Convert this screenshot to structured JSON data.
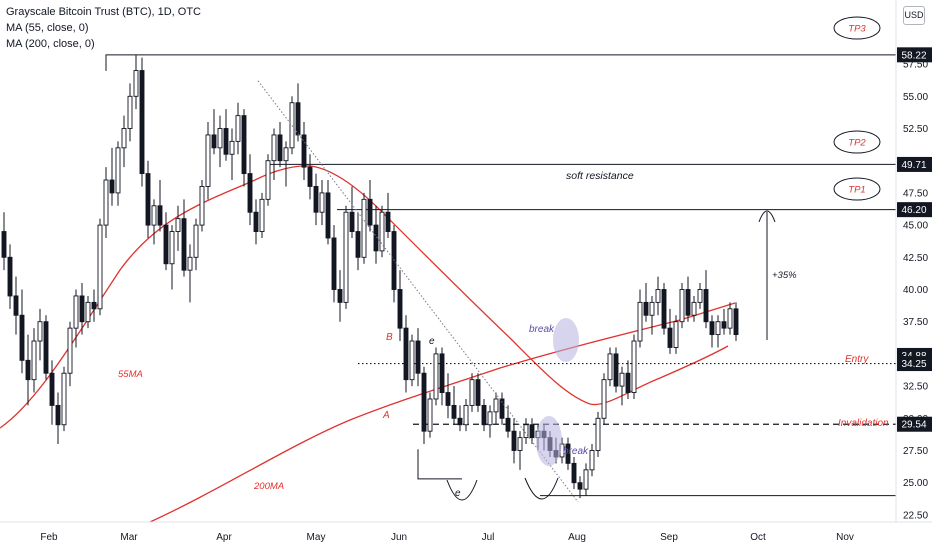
{
  "header": {
    "title": "Grayscale Bitcoin Trust (BTC), 1D, OTC",
    "ma1": "MA (55, close, 0)",
    "ma2": "MA (200, close, 0)"
  },
  "currency_button": "USD",
  "colors": {
    "bull": "#131722",
    "bear": "#131722",
    "ma": "#e0332e",
    "annotation_red": "#e0332e",
    "annotation_blue": "#5b4ea8",
    "highlight": "#b7b0e0",
    "axis_text": "#131722"
  },
  "chart_data": {
    "type": "candlestick",
    "title": "Grayscale Bitcoin Trust (BTC), 1D, OTC",
    "y_ticks": [
      "22.50",
      "25.00",
      "27.50",
      "30.00",
      "32.50",
      "35.00",
      "37.50",
      "40.00",
      "42.50",
      "45.00",
      "47.50",
      "50.00",
      "52.50",
      "55.00",
      "57.50"
    ],
    "ylim": [
      21.5,
      59.5
    ],
    "x_ticks": [
      "Feb",
      "Mar",
      "Apr",
      "May",
      "Jun",
      "Jul",
      "Aug",
      "Sep",
      "Oct",
      "Nov"
    ],
    "price_levels": [
      {
        "name": "TP3",
        "value": 58.22,
        "label": "58.22",
        "style": "solid"
      },
      {
        "name": "TP2",
        "value": 49.71,
        "label": "49.71",
        "style": "solid"
      },
      {
        "name": "TP1",
        "value": 46.2,
        "label": "46.20",
        "style": "solid"
      },
      {
        "name": "Entry",
        "value": 34.25,
        "label": "34.25",
        "style": "dotted"
      },
      {
        "name": "last",
        "value": 34.88,
        "label": "34.88",
        "style": "none"
      },
      {
        "name": "Invalidation",
        "value": 29.54,
        "label": "29.54",
        "style": "dashed"
      }
    ],
    "annotations": [
      "TP3",
      "TP2",
      "TP1",
      "soft resistance",
      "+35%",
      "Entry",
      "Invalidation",
      "break",
      "break",
      "55MA",
      "200MA",
      "A",
      "B",
      "e",
      "e"
    ],
    "series": [
      {
        "name": "MA (55, close, 0)"
      },
      {
        "name": "MA (200, close, 0)"
      }
    ],
    "ohlc": [
      [
        44.5,
        46.0,
        41.5,
        42.5
      ],
      [
        42.5,
        43.5,
        38.5,
        39.5
      ],
      [
        39.5,
        41.0,
        36.5,
        38.0
      ],
      [
        38.0,
        40.0,
        33.5,
        34.5
      ],
      [
        34.5,
        36.5,
        31.0,
        33.0
      ],
      [
        33.0,
        37.0,
        32.0,
        36.0
      ],
      [
        36.0,
        38.5,
        34.5,
        37.5
      ],
      [
        37.5,
        38.0,
        33.0,
        33.5
      ],
      [
        33.5,
        34.5,
        29.5,
        31.0
      ],
      [
        31.0,
        32.0,
        28.0,
        29.5
      ],
      [
        29.5,
        34.0,
        29.0,
        33.5
      ],
      [
        33.5,
        37.5,
        32.5,
        37.0
      ],
      [
        37.0,
        40.0,
        35.5,
        39.5
      ],
      [
        39.5,
        40.5,
        36.5,
        37.5
      ],
      [
        37.5,
        39.5,
        37.0,
        39.0
      ],
      [
        39.0,
        40.0,
        37.5,
        38.5
      ],
      [
        38.5,
        45.5,
        38.0,
        45.0
      ],
      [
        45.0,
        49.5,
        44.0,
        48.5
      ],
      [
        48.5,
        51.0,
        46.5,
        47.5
      ],
      [
        47.5,
        51.5,
        46.5,
        51.0
      ],
      [
        51.0,
        53.5,
        49.5,
        52.5
      ],
      [
        52.5,
        56.0,
        51.5,
        55.0
      ],
      [
        55.0,
        58.2,
        54.0,
        57.0
      ],
      [
        57.0,
        58.0,
        48.0,
        49.0
      ],
      [
        49.0,
        50.0,
        44.0,
        45.0
      ],
      [
        45.0,
        47.0,
        43.5,
        46.5
      ],
      [
        46.5,
        48.5,
        44.5,
        45.0
      ],
      [
        45.0,
        46.0,
        41.5,
        42.0
      ],
      [
        42.0,
        45.0,
        40.0,
        44.5
      ],
      [
        44.5,
        46.5,
        43.0,
        45.5
      ],
      [
        45.5,
        47.0,
        41.0,
        41.5
      ],
      [
        41.5,
        43.5,
        39.0,
        42.5
      ],
      [
        42.5,
        45.5,
        41.5,
        45.0
      ],
      [
        45.0,
        48.5,
        44.5,
        48.0
      ],
      [
        48.0,
        53.0,
        47.0,
        52.0
      ],
      [
        52.0,
        54.0,
        50.5,
        51.0
      ],
      [
        51.0,
        53.5,
        49.5,
        52.5
      ],
      [
        52.5,
        54.0,
        50.0,
        50.5
      ],
      [
        50.5,
        52.5,
        48.5,
        51.5
      ],
      [
        51.5,
        54.5,
        50.5,
        53.5
      ],
      [
        53.5,
        54.0,
        48.0,
        49.0
      ],
      [
        49.0,
        50.5,
        45.0,
        46.0
      ],
      [
        46.0,
        47.0,
        43.5,
        44.5
      ],
      [
        44.5,
        47.5,
        44.0,
        47.0
      ],
      [
        47.0,
        50.5,
        46.5,
        50.0
      ],
      [
        50.0,
        52.5,
        48.5,
        52.0
      ],
      [
        52.0,
        53.0,
        49.5,
        50.0
      ],
      [
        50.0,
        51.5,
        48.0,
        51.0
      ],
      [
        51.0,
        55.0,
        50.5,
        54.5
      ],
      [
        54.5,
        56.0,
        51.5,
        52.0
      ],
      [
        52.0,
        53.0,
        48.5,
        49.5
      ],
      [
        49.5,
        50.5,
        47.0,
        48.0
      ],
      [
        48.0,
        49.0,
        45.0,
        46.0
      ],
      [
        46.0,
        48.5,
        45.0,
        47.5
      ],
      [
        47.5,
        48.5,
        43.5,
        44.0
      ],
      [
        44.0,
        45.0,
        39.0,
        40.0
      ],
      [
        40.0,
        41.5,
        37.5,
        39.0
      ],
      [
        39.0,
        46.5,
        38.5,
        46.0
      ],
      [
        46.0,
        48.0,
        44.0,
        44.5
      ],
      [
        44.5,
        46.0,
        41.5,
        42.5
      ],
      [
        42.5,
        47.5,
        42.0,
        47.0
      ],
      [
        47.0,
        48.5,
        44.5,
        45.0
      ],
      [
        45.0,
        46.5,
        42.0,
        43.0
      ],
      [
        43.0,
        46.5,
        42.5,
        46.0
      ],
      [
        46.0,
        47.5,
        44.0,
        44.5
      ],
      [
        44.5,
        45.0,
        39.0,
        40.0
      ],
      [
        40.0,
        41.5,
        36.0,
        37.0
      ],
      [
        37.0,
        38.0,
        32.0,
        33.0
      ],
      [
        33.0,
        36.5,
        32.5,
        36.0
      ],
      [
        36.0,
        37.0,
        32.5,
        33.5
      ],
      [
        33.5,
        34.0,
        28.0,
        29.0
      ],
      [
        29.0,
        32.0,
        28.5,
        31.5
      ],
      [
        31.5,
        35.5,
        31.0,
        35.0
      ],
      [
        35.0,
        35.5,
        31.0,
        32.0
      ],
      [
        32.0,
        33.5,
        30.0,
        31.0
      ],
      [
        31.0,
        32.5,
        29.5,
        30.0
      ],
      [
        30.0,
        31.0,
        29.0,
        29.5
      ],
      [
        29.5,
        31.5,
        29.0,
        31.0
      ],
      [
        31.0,
        33.5,
        30.5,
        33.0
      ],
      [
        33.0,
        33.5,
        30.5,
        31.0
      ],
      [
        31.0,
        31.5,
        29.0,
        29.5
      ],
      [
        29.5,
        31.0,
        28.5,
        30.5
      ],
      [
        30.5,
        32.0,
        29.5,
        31.5
      ],
      [
        31.5,
        32.0,
        29.5,
        30.0
      ],
      [
        30.0,
        31.0,
        28.5,
        29.0
      ],
      [
        29.0,
        30.0,
        26.5,
        27.5
      ],
      [
        27.5,
        29.0,
        26.0,
        28.5
      ],
      [
        28.5,
        30.0,
        28.0,
        29.5
      ],
      [
        29.5,
        30.0,
        28.0,
        28.5
      ],
      [
        28.5,
        29.5,
        27.5,
        29.0
      ],
      [
        29.0,
        29.5,
        27.5,
        28.5
      ],
      [
        28.5,
        29.0,
        27.0,
        27.5
      ],
      [
        27.5,
        28.5,
        26.5,
        27.0
      ],
      [
        27.0,
        28.5,
        26.5,
        28.0
      ],
      [
        28.0,
        28.5,
        26.0,
        26.5
      ],
      [
        26.5,
        27.0,
        24.5,
        25.0
      ],
      [
        25.0,
        25.5,
        23.8,
        24.5
      ],
      [
        24.5,
        26.5,
        24.0,
        26.0
      ],
      [
        26.0,
        28.0,
        25.5,
        27.5
      ],
      [
        27.5,
        30.5,
        27.0,
        30.0
      ],
      [
        30.0,
        33.5,
        29.5,
        33.0
      ],
      [
        33.0,
        35.5,
        32.5,
        35.0
      ],
      [
        35.0,
        35.5,
        32.0,
        32.5
      ],
      [
        32.5,
        34.0,
        31.0,
        33.5
      ],
      [
        33.5,
        34.5,
        31.5,
        32.0
      ],
      [
        32.0,
        36.5,
        31.5,
        36.0
      ],
      [
        36.0,
        40.0,
        35.5,
        39.0
      ],
      [
        39.0,
        40.5,
        37.5,
        38.0
      ],
      [
        38.0,
        39.5,
        36.5,
        39.0
      ],
      [
        39.0,
        41.0,
        38.0,
        40.0
      ],
      [
        40.0,
        40.5,
        36.5,
        37.0
      ],
      [
        37.0,
        38.5,
        35.0,
        35.5
      ],
      [
        35.5,
        38.0,
        35.0,
        37.5
      ],
      [
        37.5,
        40.5,
        37.0,
        40.0
      ],
      [
        40.0,
        41.0,
        37.5,
        38.0
      ],
      [
        38.0,
        39.5,
        37.5,
        39.0
      ],
      [
        39.0,
        40.5,
        38.5,
        40.0
      ],
      [
        40.0,
        41.5,
        37.0,
        37.5
      ],
      [
        37.5,
        38.0,
        35.5,
        36.5
      ],
      [
        36.5,
        38.0,
        35.5,
        37.5
      ],
      [
        37.5,
        38.5,
        36.5,
        37.0
      ],
      [
        37.0,
        39.0,
        36.5,
        38.5
      ],
      [
        38.5,
        39.0,
        36.0,
        36.5
      ],
      [
        36.5,
        37.5,
        34.0,
        34.5
      ],
      [
        34.5,
        35.0,
        33.5,
        34.0
      ],
      [
        34.0,
        35.5,
        33.0,
        35.0
      ],
      [
        35.0,
        35.5,
        33.5,
        34.9
      ]
    ]
  },
  "labels": {
    "tp3": "TP3",
    "tp2": "TP2",
    "tp1": "TP1",
    "soft_resistance": "soft resistance",
    "target_pct": "+35%",
    "entry": "Entry",
    "invalidation": "Invalidation",
    "break1": "break",
    "break2": "break",
    "ma55": "55MA",
    "ma200": "200MA",
    "wave_a": "A",
    "wave_b": "B",
    "e1": "e",
    "e2": "e"
  }
}
